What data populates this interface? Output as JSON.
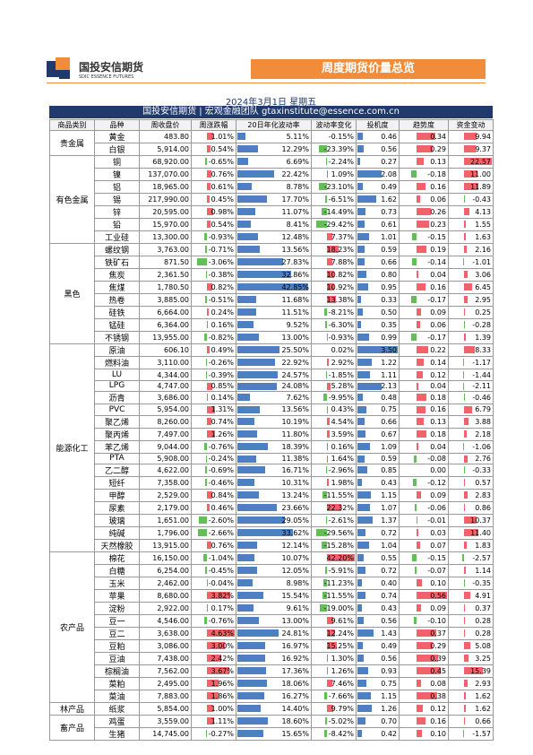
{
  "header": {
    "logo_cn": "国投安信期货",
    "logo_en": "SDIC ESSENCE FUTURES",
    "title": "周度期货价量总览"
  },
  "date": "2024年3月1日 星期五",
  "banner": "国投安信期货 | 宏观金融团队 gtaxinstitute@essence.com.cn",
  "table": {
    "columns": [
      "商品类别",
      "品种",
      "周收盘价",
      "周涨跌幅",
      "20日年化波动率",
      "波动率变化",
      "投机度",
      "趋势度",
      "资金变动"
    ],
    "groups": [
      {
        "category": "贵金属",
        "rows": [
          [
            "黄金",
            "483.80",
            "1.01%",
            "5.11%",
            "-0.15%",
            "0.46",
            "0.34",
            "9.94"
          ],
          [
            "白银",
            "5,914.00",
            "0.54%",
            "12.29%",
            "-23.39%",
            "0.56",
            "0.29",
            "9.37"
          ]
        ]
      },
      {
        "category": "有色金属",
        "rows": [
          [
            "铜",
            "68,920.00",
            "-0.65%",
            "6.69%",
            "-2.24%",
            "0.27",
            "0.13",
            "22.57"
          ],
          [
            "镍",
            "137,070.00",
            "0.76%",
            "22.42%",
            "1.09%",
            "2.08",
            "-0.18",
            "11.00"
          ],
          [
            "铝",
            "18,965.00",
            "0.61%",
            "8.78%",
            "-23.10%",
            "0.49",
            "0.16",
            "11.89"
          ],
          [
            "锡",
            "217,990.00",
            "0.45%",
            "17.70%",
            "-6.51%",
            "1.62",
            "0.06",
            "-0.43"
          ],
          [
            "锌",
            "20,595.00",
            "0.98%",
            "11.07%",
            "-14.49%",
            "0.73",
            "0.26",
            "4.13"
          ],
          [
            "铅",
            "15,970.00",
            "0.54%",
            "8.41%",
            "-29.42%",
            "0.61",
            "0.23",
            "1.55"
          ],
          [
            "工业硅",
            "13,300.00",
            "-0.93%",
            "12.48%",
            "7.37%",
            "1.01",
            "-0.15",
            "1.63"
          ]
        ]
      },
      {
        "category": "黑色",
        "rows": [
          [
            "螺纹钢",
            "3,763.00",
            "-0.71%",
            "13.56%",
            "18.23%",
            "0.59",
            "0.19",
            "2.16"
          ],
          [
            "铁矿石",
            "871.50",
            "-3.06%",
            "27.83%",
            "7.88%",
            "0.66",
            "-0.14",
            "-1.01"
          ],
          [
            "焦炭",
            "2,361.50",
            "-0.38%",
            "32.86%",
            "10.82%",
            "0.80",
            "0.04",
            "3.06"
          ],
          [
            "焦煤",
            "1,780.50",
            "0.82%",
            "42.85%",
            "10.92%",
            "0.95",
            "0.16",
            "6.45"
          ],
          [
            "热卷",
            "3,885.00",
            "-0.51%",
            "11.68%",
            "13.38%",
            "0.33",
            "-0.17",
            "2.95"
          ],
          [
            "硅铁",
            "6,664.00",
            "0.24%",
            "11.51%",
            "-8.21%",
            "0.50",
            "0.09",
            "0.25"
          ],
          [
            "锰硅",
            "6,364.00",
            "0.16%",
            "9.52%",
            "-6.30%",
            "0.35",
            "0.06",
            "-0.28"
          ],
          [
            "不锈钢",
            "13,955.00",
            "-0.82%",
            "13.00%",
            "-0.93%",
            "0.99",
            "-0.17",
            "1.39"
          ]
        ]
      },
      {
        "category": "能源化工",
        "rows": [
          [
            "原油",
            "606.10",
            "0.49%",
            "25.50%",
            "0.02%",
            "3.50",
            "0.22",
            "8.33"
          ],
          [
            "燃料油",
            "3,110.00",
            "-0.26%",
            "22.92%",
            "2.92%",
            "1.22",
            "0.14",
            "-1.17"
          ],
          [
            "LU",
            "4,344.00",
            "-0.39%",
            "24.57%",
            "-1.85%",
            "1.11",
            "0.12",
            "-1.44"
          ],
          [
            "LPG",
            "4,747.00",
            "0.85%",
            "24.08%",
            "5.28%",
            "2.13",
            "0.04",
            "-2.11"
          ],
          [
            "沥青",
            "3,686.00",
            "0.14%",
            "7.62%",
            "-9.95%",
            "0.48",
            "0.18",
            "-0.46"
          ],
          [
            "PVC",
            "5,954.00",
            "1.31%",
            "13.56%",
            "0.43%",
            "0.75",
            "0.16",
            "6.79"
          ],
          [
            "聚乙烯",
            "8,260.00",
            "0.74%",
            "10.19%",
            "4.54%",
            "0.66",
            "0.13",
            "3.88"
          ],
          [
            "聚丙烯",
            "7,497.00",
            "1.26%",
            "11.80%",
            "3.59%",
            "0.67",
            "0.18",
            "2.18"
          ],
          [
            "苯乙烯",
            "9,044.00",
            "-0.76%",
            "18.39%",
            "0.16%",
            "1.09",
            "0.04",
            "-1.06"
          ],
          [
            "PTA",
            "5,908.00",
            "-0.24%",
            "11.38%",
            "1.64%",
            "0.59",
            "-0.08",
            "2.76"
          ],
          [
            "乙二醇",
            "4,622.00",
            "-0.69%",
            "16.71%",
            "-2.96%",
            "0.85",
            "0.00",
            "-0.33"
          ],
          [
            "短纤",
            "7,358.00",
            "-0.46%",
            "10.31%",
            "1.98%",
            "0.43",
            "-0.12",
            "0.57"
          ],
          [
            "甲醇",
            "2,529.00",
            "0.84%",
            "13.24%",
            "-11.55%",
            "1.15",
            "0.09",
            "2.83"
          ],
          [
            "尿素",
            "2,179.00",
            "0.46%",
            "23.66%",
            "22.32%",
            "1.07",
            "-0.06",
            "0.86"
          ],
          [
            "玻璃",
            "1,651.00",
            "-2.60%",
            "29.05%",
            "-2.61%",
            "1.37",
            "-0.01",
            "10.37"
          ],
          [
            "纯碱",
            "1,796.00",
            "-2.66%",
            "33.62%",
            "-29.56%",
            "0.72",
            "0.03",
            "11.40"
          ],
          [
            "天然橡胶",
            "13,915.00",
            "0.76%",
            "12.14%",
            "-15.28%",
            "1.04",
            "0.07",
            "1.83"
          ]
        ]
      },
      {
        "category": "农产品",
        "rows": [
          [
            "棉花",
            "16,150.00",
            "-1.04%",
            "10.07%",
            "42.20%",
            "0.55",
            "-0.15",
            "-2.57"
          ],
          [
            "白糖",
            "6,254.00",
            "-0.45%",
            "12.05%",
            "-5.91%",
            "0.72",
            "-0.07",
            "1.14"
          ],
          [
            "玉米",
            "2,462.00",
            "-0.04%",
            "8.98%",
            "-11.23%",
            "0.40",
            "0.10",
            "-0.35"
          ],
          [
            "苹果",
            "8,680.00",
            "3.82%",
            "15.54%",
            "-11.55%",
            "0.74",
            "0.56",
            "4.91"
          ],
          [
            "淀粉",
            "2,922.00",
            "0.17%",
            "9.61%",
            "-19.00%",
            "0.43",
            "0.09",
            "0.37"
          ],
          [
            "豆一",
            "4,546.00",
            "-0.76%",
            "13.00%",
            "9.61%",
            "0.56",
            "-0.10",
            "0.28"
          ],
          [
            "豆二",
            "3,638.00",
            "4.63%",
            "24.81%",
            "12.24%",
            "1.43",
            "0.37",
            "0.28"
          ],
          [
            "豆粕",
            "3,086.00",
            "3.00%",
            "16.97%",
            "15.25%",
            "0.49",
            "0.29",
            "5.08"
          ],
          [
            "豆油",
            "7,438.00",
            "2.42%",
            "16.92%",
            "1.30%",
            "0.56",
            "0.39",
            "3.25"
          ],
          [
            "棕榈油",
            "7,562.00",
            "3.67%",
            "17.36%",
            "1.26%",
            "0.93",
            "0.45",
            "15.39"
          ],
          [
            "菜粕",
            "2,495.00",
            "1.96%",
            "18.06%",
            "7.46%",
            "0.75",
            "0.08",
            "2.93"
          ],
          [
            "菜油",
            "7,883.00",
            "1.86%",
            "16.27%",
            "-7.66%",
            "1.15",
            "0.38",
            "1.62"
          ]
        ]
      },
      {
        "category": "林产品",
        "rows": [
          [
            "纸浆",
            "5,854.00",
            "1.00%",
            "14.40%",
            "9.79%",
            "1.26",
            "0.12",
            "1.62"
          ]
        ]
      },
      {
        "category": "畜产品",
        "rows": [
          [
            "鸡蛋",
            "3,559.00",
            "1.11%",
            "18.60%",
            "-5.02%",
            "0.70",
            "0.16",
            "0.66"
          ],
          [
            "生猪",
            "14,745.00",
            "-0.27%",
            "15.65%",
            "-8.42%",
            "0.42",
            "0.10",
            "-1.57"
          ]
        ]
      }
    ]
  }
}
